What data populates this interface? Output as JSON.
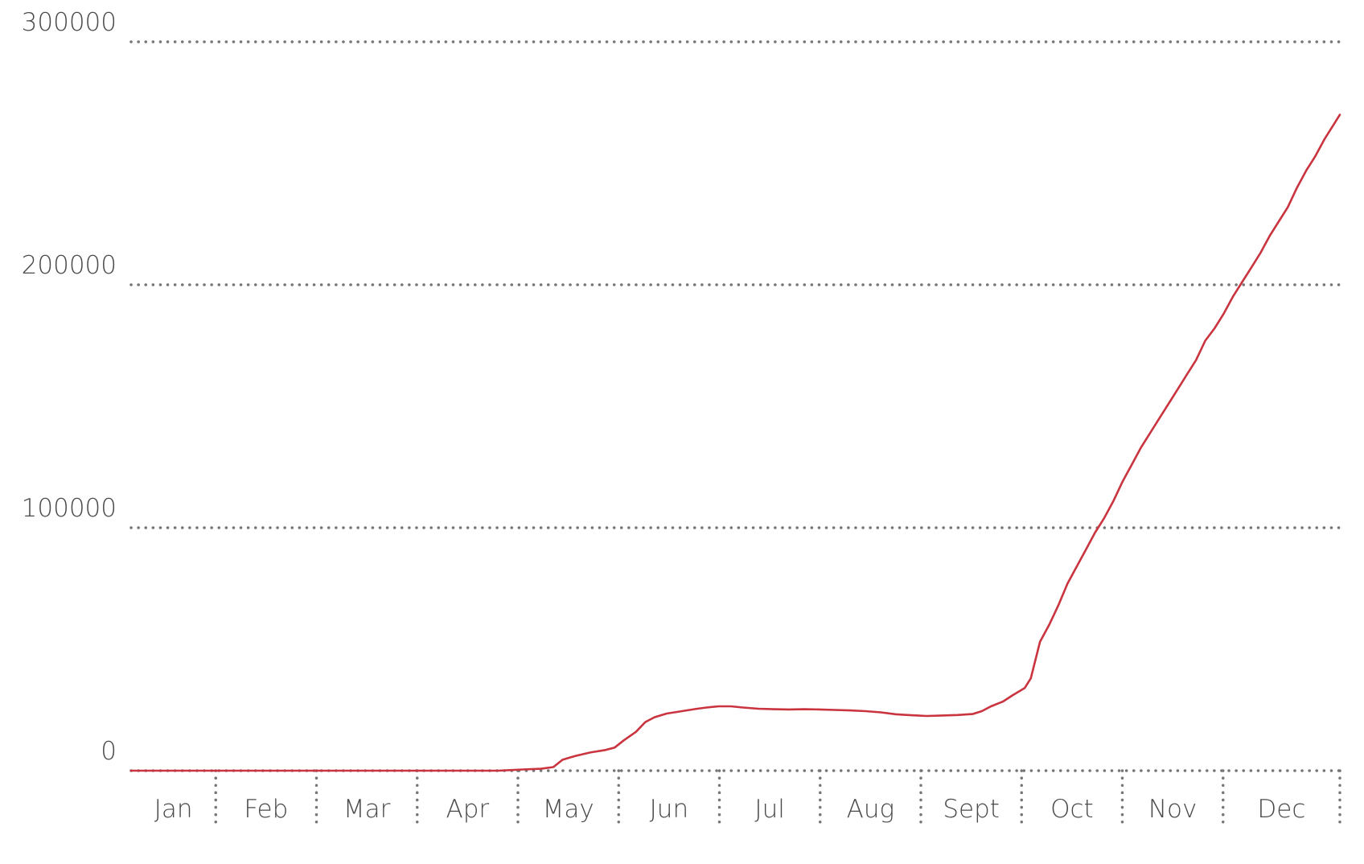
{
  "chart_data": {
    "type": "line",
    "title": "",
    "xlabel": "",
    "ylabel": "",
    "ylim": [
      0,
      300000
    ],
    "grid": true,
    "y_ticks": [
      {
        "value": 0,
        "label": "0"
      },
      {
        "value": 100000,
        "label": "100000"
      },
      {
        "value": 200000,
        "label": "200000"
      },
      {
        "value": 300000,
        "label": "300000"
      }
    ],
    "x_months": [
      "Jan",
      "Feb",
      "Mar",
      "Apr",
      "May",
      "Jun",
      "Jul",
      "Aug",
      "Sept",
      "Oct",
      "Nov",
      "Dec"
    ],
    "series": [
      {
        "color": "#c9343f",
        "points": [
          [
            0,
            0
          ],
          [
            10,
            0
          ],
          [
            20,
            0
          ],
          [
            31,
            0
          ],
          [
            40,
            0
          ],
          [
            50,
            0
          ],
          [
            59,
            0
          ],
          [
            70,
            0
          ],
          [
            80,
            0
          ],
          [
            90,
            0
          ],
          [
            100,
            0
          ],
          [
            110,
            0
          ],
          [
            120,
            0
          ],
          [
            128,
            500
          ],
          [
            134,
            800
          ],
          [
            138,
            1500
          ],
          [
            141,
            4500
          ],
          [
            145,
            6000
          ],
          [
            150,
            7500
          ],
          [
            155,
            8500
          ],
          [
            158,
            9500
          ],
          [
            161,
            12500
          ],
          [
            165,
            16000
          ],
          [
            168,
            20000
          ],
          [
            171,
            22000
          ],
          [
            175,
            23500
          ],
          [
            180,
            24500
          ],
          [
            185,
            25500
          ],
          [
            188,
            26000
          ],
          [
            192,
            26500
          ],
          [
            196,
            26500
          ],
          [
            200,
            26000
          ],
          [
            205,
            25500
          ],
          [
            210,
            25300
          ],
          [
            215,
            25200
          ],
          [
            220,
            25300
          ],
          [
            225,
            25200
          ],
          [
            230,
            25000
          ],
          [
            235,
            24800
          ],
          [
            240,
            24500
          ],
          [
            245,
            24000
          ],
          [
            250,
            23200
          ],
          [
            255,
            22800
          ],
          [
            260,
            22500
          ],
          [
            265,
            22700
          ],
          [
            270,
            22900
          ],
          [
            275,
            23300
          ],
          [
            278,
            24500
          ],
          [
            281,
            26500
          ],
          [
            285,
            28500
          ],
          [
            288,
            31000
          ],
          [
            292,
            34000
          ],
          [
            294,
            38000
          ],
          [
            297,
            53000
          ],
          [
            300,
            60000
          ],
          [
            303,
            68000
          ],
          [
            306,
            77000
          ],
          [
            309,
            84000
          ],
          [
            312,
            91000
          ],
          [
            315,
            98000
          ],
          [
            318,
            104000
          ],
          [
            321,
            111000
          ],
          [
            324,
            119000
          ],
          [
            327,
            126000
          ],
          [
            330,
            133000
          ],
          [
            333,
            139000
          ],
          [
            336,
            145000
          ],
          [
            339,
            151000
          ],
          [
            342,
            157000
          ],
          [
            345,
            163000
          ],
          [
            348,
            169000
          ],
          [
            351,
            177000
          ],
          [
            354,
            182000
          ],
          [
            357,
            188000
          ],
          [
            360,
            195000
          ],
          [
            363,
            201000
          ],
          [
            366,
            207000
          ],
          [
            369,
            213000
          ],
          [
            372,
            220000
          ],
          [
            375,
            226000
          ],
          [
            378,
            232000
          ],
          [
            381,
            240000
          ],
          [
            384,
            247000
          ],
          [
            387,
            253000
          ],
          [
            390,
            260000
          ],
          [
            393,
            266000
          ],
          [
            395,
            270000
          ]
        ]
      }
    ]
  }
}
